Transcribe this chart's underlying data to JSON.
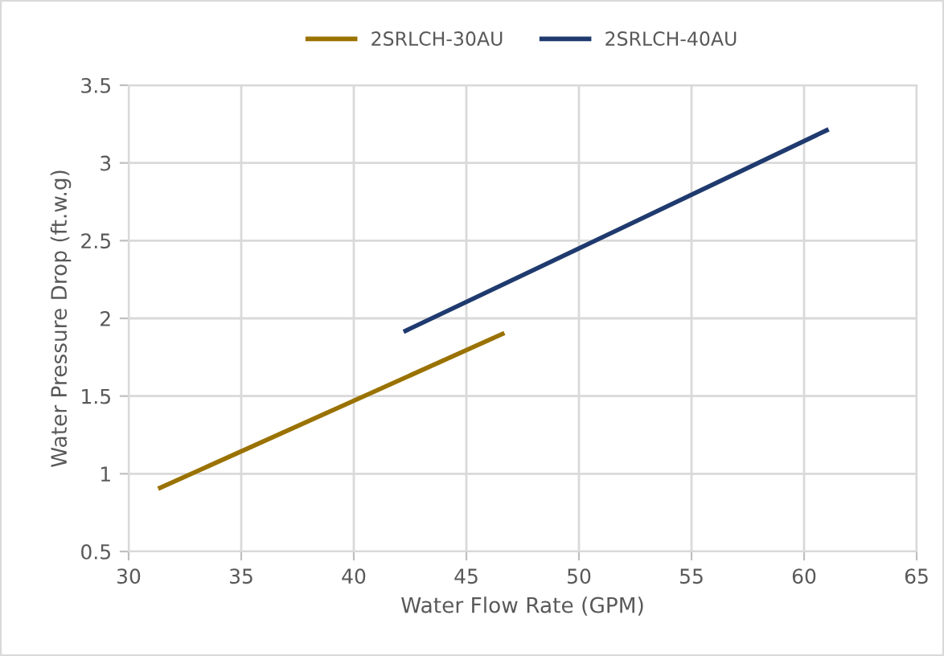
{
  "chart_data": {
    "type": "line",
    "xlabel": "Water Flow Rate (GPM)",
    "ylabel": "Water Pressure Drop (ft.w.g)",
    "series": [
      {
        "name": "2SRLCH-30AU",
        "color": "#9a7200",
        "x": [
          31.4,
          40,
          46.6
        ],
        "values": [
          0.91,
          1.47,
          1.9
        ]
      },
      {
        "name": "2SRLCH-40AU",
        "color": "#1f3a6e",
        "x": [
          42.3,
          50,
          61
        ],
        "values": [
          1.92,
          2.45,
          3.21
        ]
      }
    ],
    "xlim": [
      30,
      65
    ],
    "xticks": [
      30,
      35,
      40,
      45,
      50,
      55,
      60,
      65
    ],
    "ylim": [
      0.5,
      3.5
    ],
    "yticks": [
      0.5,
      1,
      1.5,
      2,
      2.5,
      3,
      3.5
    ],
    "grid": true,
    "legend": "top",
    "marker": "none",
    "line_style": "solid"
  }
}
